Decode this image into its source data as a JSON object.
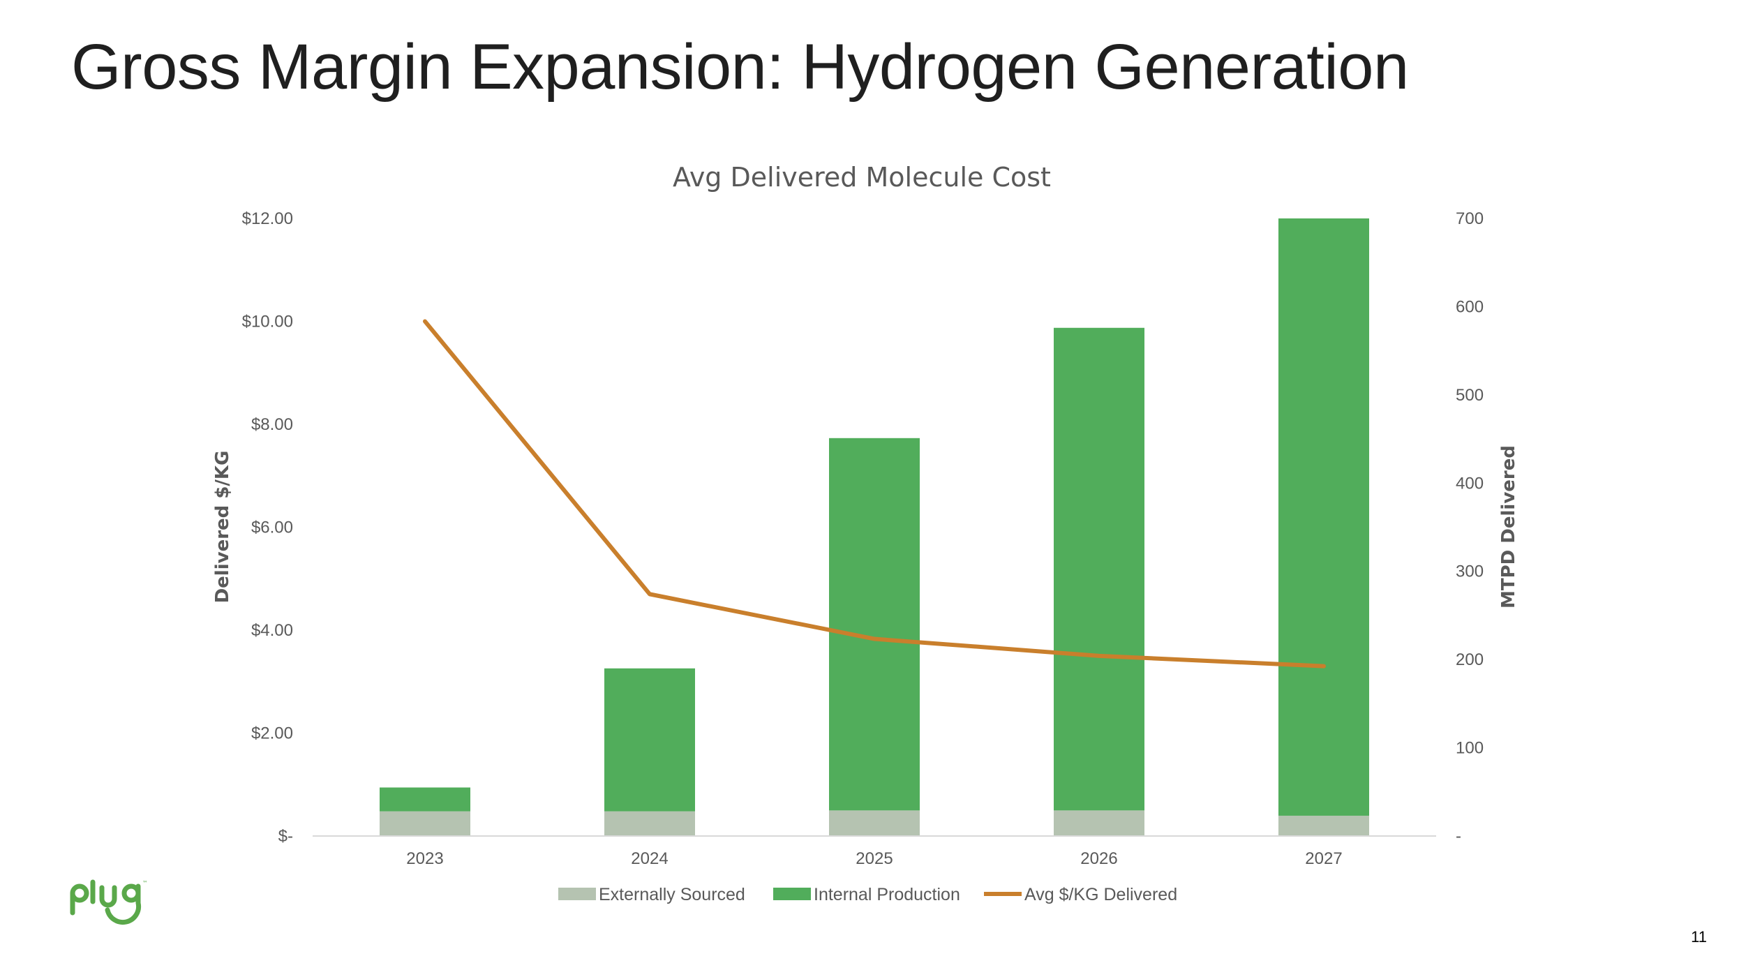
{
  "slide": {
    "title": "Gross Margin Expansion: Hydrogen Generation",
    "page_number": "11",
    "logo_text": "plug"
  },
  "colors": {
    "externally_sourced": "#b5c3b1",
    "internal_production": "#51ad5b",
    "avg_line": "#c97f2c",
    "axis_text": "#595959",
    "logo_green": "#5aa84a"
  },
  "chart_data": {
    "type": "bar",
    "stacked": true,
    "title": "Avg Delivered Molecule Cost",
    "categories": [
      "2023",
      "2024",
      "2025",
      "2026",
      "2027"
    ],
    "ylabel": "Delivered $/KG",
    "y2label": "MTPD Delivered",
    "ylim": [
      0,
      12
    ],
    "y2lim": [
      0,
      700
    ],
    "yticks": [
      "$-",
      "$2.00",
      "$4.00",
      "$6.00",
      "$8.00",
      "$10.00",
      "$12.00"
    ],
    "y2ticks": [
      "-",
      "100",
      "200",
      "300",
      "400",
      "500",
      "600",
      "700"
    ],
    "series": [
      {
        "name": "Externally Sourced",
        "type": "bar",
        "axis": "right",
        "values": [
          28,
          28,
          29,
          29,
          23
        ]
      },
      {
        "name": "Internal Production",
        "type": "bar",
        "axis": "right",
        "values": [
          27,
          162,
          422,
          547,
          677
        ]
      },
      {
        "name": "Avg $/KG Delivered",
        "type": "line",
        "axis": "left",
        "values": [
          10.0,
          4.7,
          3.83,
          3.5,
          3.3
        ]
      }
    ],
    "legend_position": "bottom",
    "grid": false
  }
}
